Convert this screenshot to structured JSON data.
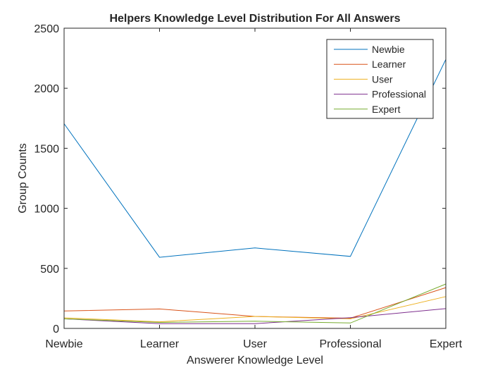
{
  "chart_data": {
    "type": "line",
    "title": "Helpers Knowledge Level Distribution For All Answers",
    "xlabel": "Answerer Knowledge Level",
    "ylabel": "Group Counts",
    "categories": [
      "Newbie",
      "Learner",
      "User",
      "Professional",
      "Expert"
    ],
    "ylim": [
      0,
      2500
    ],
    "yticks": [
      0,
      500,
      1000,
      1500,
      2000,
      2500
    ],
    "grid": false,
    "legend_position": "top-right",
    "series": [
      {
        "name": "Newbie",
        "color": "#0072BD",
        "values": [
          1705,
          592,
          670,
          600,
          2240
        ]
      },
      {
        "name": "Learner",
        "color": "#D95319",
        "values": [
          145,
          162,
          100,
          85,
          340
        ]
      },
      {
        "name": "User",
        "color": "#EDB120",
        "values": [
          88,
          55,
          100,
          80,
          265
        ]
      },
      {
        "name": "Professional",
        "color": "#7E2F8E",
        "values": [
          80,
          40,
          40,
          90,
          165
        ]
      },
      {
        "name": "Expert",
        "color": "#77AC30",
        "values": [
          80,
          50,
          60,
          45,
          370
        ]
      }
    ]
  }
}
